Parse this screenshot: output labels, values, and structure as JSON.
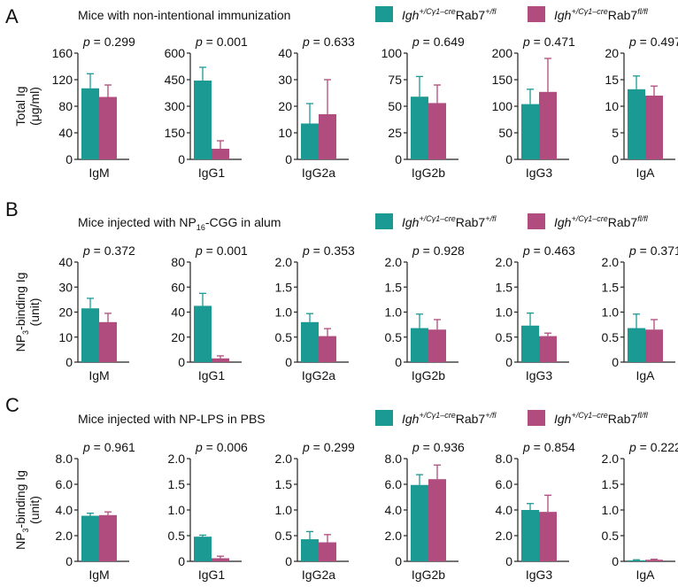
{
  "legend": {
    "control_color": "#1b9a93",
    "knockout_color": "#b04c7e",
    "control_prefix": "Igh",
    "control_sup": "+/Cγ1–cre",
    "control_gene": "Rab7",
    "control_gene_sup": "+/fl",
    "knockout_prefix": "Igh",
    "knockout_sup": "+/Cγ1–cre",
    "knockout_gene": "Rab7",
    "knockout_gene_sup": "fl/fl"
  },
  "p_prefix": "p",
  "chart_data": [
    {
      "type": "bar",
      "panel_letter": "A",
      "title": "Mice with non-intentional immunization",
      "ylabel_line1": "Total Ig",
      "ylabel_line2": "(μg/ml)",
      "subplots": [
        {
          "category": "IgM",
          "p": "= 0.299",
          "ylim": [
            0,
            160
          ],
          "ticks": [
            "0",
            "40",
            "80",
            "120",
            "160"
          ],
          "values": [
            107,
            94
          ],
          "errors": [
            22,
            18
          ]
        },
        {
          "category": "IgG1",
          "p": "= 0.001",
          "ylim": [
            0,
            600
          ],
          "ticks": [
            "0",
            "150",
            "300",
            "450",
            "600"
          ],
          "values": [
            445,
            60
          ],
          "errors": [
            75,
            45
          ]
        },
        {
          "category": "IgG2a",
          "p": "= 0.633",
          "ylim": [
            0,
            40
          ],
          "ticks": [
            "0",
            "10",
            "20",
            "30",
            "40"
          ],
          "values": [
            13.5,
            17
          ],
          "errors": [
            7.5,
            13
          ]
        },
        {
          "category": "IgG2b",
          "p": "= 0.649",
          "ylim": [
            0,
            100
          ],
          "ticks": [
            "0",
            "25",
            "50",
            "75",
            "100"
          ],
          "values": [
            59,
            53
          ],
          "errors": [
            19,
            17
          ]
        },
        {
          "category": "IgG3",
          "p": "= 0.471",
          "ylim": [
            0,
            200
          ],
          "ticks": [
            "0",
            "50",
            "100",
            "150",
            "200"
          ],
          "values": [
            104,
            127
          ],
          "errors": [
            28,
            63
          ]
        },
        {
          "category": "IgA",
          "p": "= 0.497",
          "ylim": [
            0,
            20
          ],
          "ticks": [
            "0",
            "5",
            "10",
            "15",
            "20"
          ],
          "values": [
            13.2,
            12
          ],
          "errors": [
            2.5,
            1.8
          ]
        }
      ]
    },
    {
      "type": "bar",
      "panel_letter": "B",
      "title_main": "Mice injected with NP",
      "title_sub": "16",
      "title_rest": "-CGG in alum",
      "ylabel_line1_main": "NP",
      "ylabel_line1_sub": "3",
      "ylabel_line1_rest": "-binding Ig",
      "ylabel_line2": "(unit)",
      "subplots": [
        {
          "category": "IgM",
          "p": "= 0.372",
          "ylim": [
            0,
            40
          ],
          "ticks": [
            "0",
            "10",
            "20",
            "30",
            "40"
          ],
          "values": [
            21.5,
            16
          ],
          "errors": [
            4,
            3.5
          ]
        },
        {
          "category": "IgG1",
          "p": "= 0.001",
          "ylim": [
            0,
            80
          ],
          "ticks": [
            "0",
            "20",
            "40",
            "60",
            "80"
          ],
          "values": [
            45,
            3
          ],
          "errors": [
            10,
            2
          ]
        },
        {
          "category": "IgG2a",
          "p": "= 0.353",
          "ylim": [
            0,
            2.0
          ],
          "ticks": [
            "0",
            "0.5",
            "1.0",
            "1.5",
            "2.0"
          ],
          "values": [
            0.8,
            0.52
          ],
          "errors": [
            0.17,
            0.15
          ]
        },
        {
          "category": "IgG2b",
          "p": "= 0.928",
          "ylim": [
            0,
            2.0
          ],
          "ticks": [
            "0",
            "0.5",
            "1.0",
            "1.5",
            "2.0"
          ],
          "values": [
            0.68,
            0.65
          ],
          "errors": [
            0.28,
            0.2
          ]
        },
        {
          "category": "IgG3",
          "p": "= 0.463",
          "ylim": [
            0,
            2.0
          ],
          "ticks": [
            "0",
            "0.5",
            "1.0",
            "1.5",
            "2.0"
          ],
          "values": [
            0.73,
            0.52
          ],
          "errors": [
            0.25,
            0.06
          ]
        },
        {
          "category": "IgA",
          "p": "= 0.371",
          "ylim": [
            0,
            2.0
          ],
          "ticks": [
            "0",
            "0.5",
            "1.0",
            "1.5",
            "2.0"
          ],
          "values": [
            0.68,
            0.65
          ],
          "errors": [
            0.28,
            0.2
          ]
        }
      ]
    },
    {
      "type": "bar",
      "panel_letter": "C",
      "title": "Mice injected with NP-LPS in PBS",
      "ylabel_line1_main": "NP",
      "ylabel_line1_sub": "3",
      "ylabel_line1_rest": "-binding Ig",
      "ylabel_line2": "(unit)",
      "subplots": [
        {
          "category": "IgM",
          "p": "= 0.961",
          "ylim": [
            0,
            8.0
          ],
          "ticks": [
            "0",
            "2.0",
            "4.0",
            "6.0",
            "8.0"
          ],
          "values": [
            3.55,
            3.6
          ],
          "errors": [
            0.2,
            0.25
          ]
        },
        {
          "category": "IgG1",
          "p": "= 0.006",
          "ylim": [
            0,
            2.0
          ],
          "ticks": [
            "0",
            "0.5",
            "1.0",
            "1.5",
            "2.0"
          ],
          "values": [
            0.48,
            0.06
          ],
          "errors": [
            0.03,
            0.04
          ]
        },
        {
          "category": "IgG2a",
          "p": "= 0.299",
          "ylim": [
            0,
            2.0
          ],
          "ticks": [
            "0",
            "0.5",
            "1.0",
            "1.5",
            "2.0"
          ],
          "values": [
            0.43,
            0.37
          ],
          "errors": [
            0.15,
            0.15
          ]
        },
        {
          "category": "IgG2b",
          "p": "= 0.936",
          "ylim": [
            0,
            8.0
          ],
          "ticks": [
            "0",
            "2.0",
            "4.0",
            "6.0",
            "8.0"
          ],
          "values": [
            5.95,
            6.4
          ],
          "errors": [
            0.8,
            1.1
          ]
        },
        {
          "category": "IgG3",
          "p": "= 0.854",
          "ylim": [
            0,
            8.0
          ],
          "ticks": [
            "0",
            "2.0",
            "4.0",
            "6.0",
            "8.0"
          ],
          "values": [
            4.0,
            3.85
          ],
          "errors": [
            0.5,
            1.3
          ]
        },
        {
          "category": "IgA",
          "p": "= 0.222",
          "ylim": [
            0,
            2.0
          ],
          "ticks": [
            "0",
            "0.5",
            "1.0",
            "1.5",
            "2.0"
          ],
          "values": [
            0.02,
            0.03
          ],
          "errors": [
            0.01,
            0.01
          ]
        }
      ]
    }
  ]
}
